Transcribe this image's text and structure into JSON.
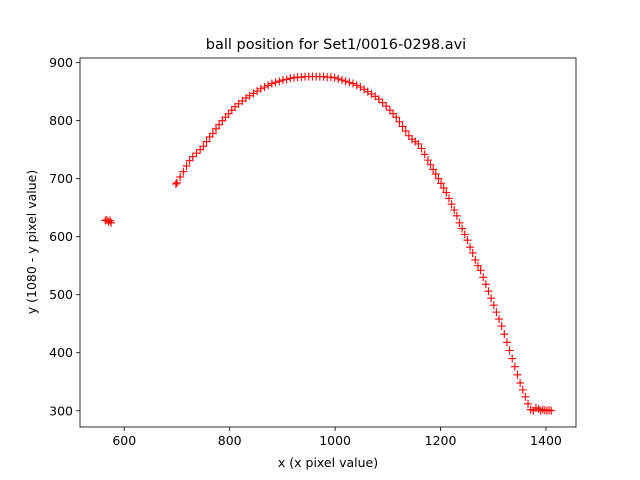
{
  "chart_data": {
    "type": "scatter",
    "title": "ball position for Set1/0016-0298.avi",
    "xlabel": "x (x pixel value)",
    "ylabel": "y (1080 - y pixel value)",
    "xlim": [
      516,
      1457
    ],
    "ylim": [
      272,
      908
    ],
    "xticks": [
      600,
      800,
      1000,
      1200,
      1400
    ],
    "yticks": [
      300,
      400,
      500,
      600,
      700,
      800,
      900
    ],
    "grid": false,
    "legend": "none",
    "marker": "+",
    "color": "#ff0000",
    "series": [
      {
        "x": [
          564,
          567,
          570,
          573,
          575,
          698,
          700,
          706,
          712,
          718,
          724,
          730,
          737,
          744,
          750,
          756,
          762,
          768,
          774,
          780,
          786,
          792,
          798,
          804,
          810,
          817,
          824,
          831,
          838,
          845,
          852,
          859,
          866,
          873,
          880,
          887,
          894,
          901,
          908,
          915,
          922,
          929,
          936,
          943,
          950,
          957,
          964,
          971,
          978,
          985,
          992,
          999,
          1006,
          1013,
          1020,
          1027,
          1034,
          1041,
          1048,
          1055,
          1062,
          1069,
          1076,
          1083,
          1090,
          1097,
          1104,
          1110,
          1116,
          1122,
          1128,
          1134,
          1140,
          1146,
          1152,
          1158,
          1164,
          1170,
          1176,
          1181,
          1186,
          1191,
          1196,
          1201,
          1206,
          1211,
          1216,
          1221,
          1226,
          1231,
          1236,
          1241,
          1246,
          1251,
          1256,
          1261,
          1266,
          1271,
          1276,
          1281,
          1286,
          1291,
          1296,
          1301,
          1306,
          1311,
          1316,
          1321,
          1326,
          1331,
          1336,
          1341,
          1346,
          1351,
          1356,
          1361,
          1366,
          1371,
          1376,
          1381,
          1386,
          1390,
          1394,
          1398,
          1402,
          1406,
          1410
        ],
        "y": [
          628,
          629,
          626,
          628,
          624,
          691,
          693,
          703,
          712,
          722,
          731,
          738,
          744,
          750,
          756,
          764,
          772,
          778,
          786,
          793,
          800,
          806,
          812,
          818,
          824,
          829,
          834,
          839,
          843,
          847,
          851,
          855,
          858,
          861,
          864,
          866,
          868,
          870,
          871,
          873,
          874,
          875,
          875,
          876,
          876,
          876,
          876,
          876,
          876,
          875,
          875,
          874,
          872,
          870,
          868,
          866,
          864,
          861,
          858,
          854,
          850,
          846,
          842,
          837,
          831,
          825,
          818,
          812,
          806,
          798,
          790,
          782,
          774,
          768,
          764,
          760,
          752,
          742,
          732,
          724,
          716,
          708,
          700,
          692,
          684,
          676,
          666,
          656,
          646,
          636,
          624,
          614,
          604,
          594,
          582,
          572,
          560,
          550,
          542,
          530,
          518,
          506,
          494,
          482,
          470,
          458,
          446,
          432,
          418,
          404,
          390,
          376,
          362,
          348,
          336,
          324,
          312,
          302,
          300,
          305,
          303,
          300,
          302,
          301,
          300,
          301,
          300
        ]
      }
    ]
  }
}
